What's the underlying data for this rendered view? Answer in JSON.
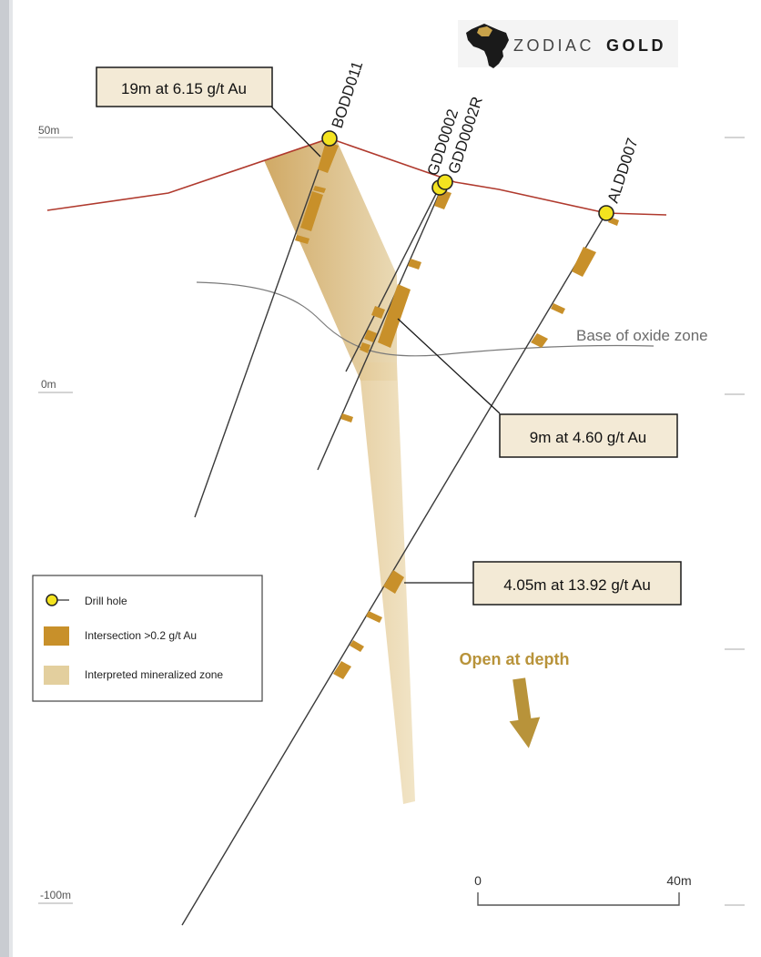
{
  "colors": {
    "background_frame": "#c9ccd1",
    "paper": "#ffffff",
    "topography": "#b03a2e",
    "drill_line": "#3a3a3a",
    "intersection": "#c8902a",
    "zone": "#d9be8c",
    "callout_fill": "#f3ead6",
    "open_depth": "#b8933a"
  },
  "logo": {
    "brand_light": "ZODIAC",
    "brand_bold": "GOLD",
    "icon": "africa-map-icon"
  },
  "elevations": {
    "e50": "50m",
    "e0": "0m",
    "em100": "-100m"
  },
  "drill_holes": [
    {
      "id": "BODD011"
    },
    {
      "id": "GDD0002"
    },
    {
      "id": "GDD0002R"
    },
    {
      "id": "ALDD007"
    }
  ],
  "callouts": {
    "c1": "19m at 6.15 g/t Au",
    "c2": "9m at 4.60 g/t Au",
    "c3": "4.05m at 13.92 g/t Au"
  },
  "oxide_label": "Base of oxide zone",
  "open_at_depth": "Open at depth",
  "scale": {
    "start": "0",
    "end": "40m"
  },
  "legend": {
    "drill_hole": "Drill hole",
    "intersection": "Intersection >0.2 g/t Au",
    "zone": "Interpreted mineralized zone"
  }
}
